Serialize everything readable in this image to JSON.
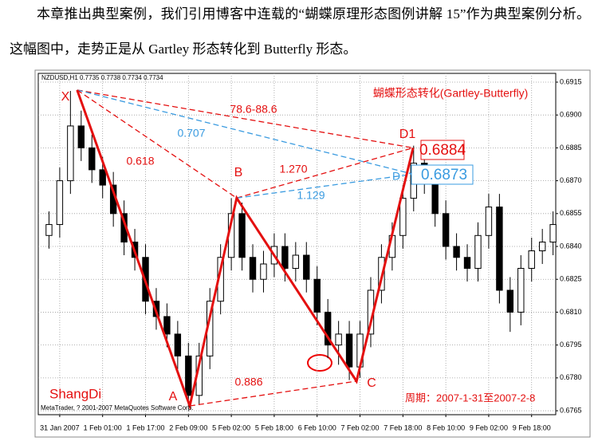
{
  "text": {
    "paragraph": "本章推出典型案例，我们引用博客中连载的“蝴蝶原理形态图例讲解 15”作为典型案例分析。这幅图中，走势正是从 Gartley 形态转化到 Butterfly 形态。"
  },
  "chart_data": {
    "type": "candlestick",
    "title": "蝴蝶形态转化(Gartley-Butterfly)",
    "symbol_label": "NZDUSD,H1 0.7735 0.7738 0.7734 0.7734",
    "x": [
      -4,
      0,
      4,
      8,
      12,
      16,
      20,
      24,
      28,
      32,
      36,
      40,
      44,
      48,
      52,
      56,
      60,
      64,
      68,
      72,
      76,
      80,
      84,
      88,
      92,
      96,
      100,
      104,
      108,
      112,
      116,
      120,
      124,
      128,
      132,
      136,
      140,
      144,
      148,
      152,
      156,
      160,
      164,
      168,
      172,
      176,
      180,
      184
    ],
    "open": [
      0.6845,
      0.685,
      0.687,
      0.6895,
      0.6885,
      0.6875,
      0.6868,
      0.6855,
      0.6842,
      0.6835,
      0.6815,
      0.6808,
      0.68,
      0.679,
      0.6772,
      0.679,
      0.6815,
      0.6835,
      0.6855,
      0.6835,
      0.6825,
      0.6832,
      0.684,
      0.683,
      0.6836,
      0.6825,
      0.681,
      0.6795,
      0.68,
      0.6785,
      0.68,
      0.682,
      0.6835,
      0.6845,
      0.6862,
      0.6878,
      0.687,
      0.6855,
      0.684,
      0.6835,
      0.683,
      0.6845,
      0.6858,
      0.682,
      0.681,
      0.683,
      0.6838,
      0.6842
    ],
    "high": [
      0.6856,
      0.6876,
      0.6911,
      0.6902,
      0.6891,
      0.6881,
      0.6874,
      0.6861,
      0.6848,
      0.6841,
      0.6821,
      0.6814,
      0.6806,
      0.6796,
      0.6796,
      0.6821,
      0.6841,
      0.6862,
      0.686,
      0.6841,
      0.6838,
      0.6846,
      0.6846,
      0.6842,
      0.6842,
      0.6831,
      0.6816,
      0.6806,
      0.6806,
      0.6806,
      0.6826,
      0.6841,
      0.6851,
      0.6868,
      0.6886,
      0.6884,
      0.6876,
      0.6861,
      0.6846,
      0.6841,
      0.6851,
      0.6864,
      0.6864,
      0.6826,
      0.6836,
      0.6844,
      0.6848,
      0.6856
    ],
    "low": [
      0.6839,
      0.6844,
      0.6864,
      0.6879,
      0.6869,
      0.6862,
      0.6849,
      0.6836,
      0.6829,
      0.6809,
      0.6802,
      0.6794,
      0.6784,
      0.6767,
      0.6768,
      0.6784,
      0.6809,
      0.6829,
      0.6829,
      0.6819,
      0.6819,
      0.6826,
      0.6824,
      0.6824,
      0.6819,
      0.6804,
      0.6789,
      0.6786,
      0.6779,
      0.678,
      0.6794,
      0.6814,
      0.6829,
      0.6839,
      0.6856,
      0.6864,
      0.6849,
      0.6834,
      0.6829,
      0.6824,
      0.6824,
      0.6839,
      0.6814,
      0.6801,
      0.6804,
      0.6824,
      0.6832,
      0.6836
    ],
    "close": [
      0.685,
      0.687,
      0.6895,
      0.6885,
      0.6875,
      0.6868,
      0.6855,
      0.6842,
      0.6835,
      0.6815,
      0.6808,
      0.68,
      0.679,
      0.6772,
      0.679,
      0.6815,
      0.6835,
      0.6855,
      0.6835,
      0.6825,
      0.6832,
      0.684,
      0.683,
      0.6836,
      0.6825,
      0.681,
      0.6795,
      0.68,
      0.6785,
      0.68,
      0.682,
      0.6835,
      0.6845,
      0.6862,
      0.6878,
      0.687,
      0.6855,
      0.684,
      0.6835,
      0.683,
      0.6845,
      0.6858,
      0.682,
      0.681,
      0.683,
      0.6838,
      0.6842,
      0.685
    ],
    "xlim": [
      -8,
      185
    ],
    "xticks": [
      {
        "value": 0,
        "label": "31 Jan 2007"
      },
      {
        "value": 16,
        "label": "1 Feb 01:00"
      },
      {
        "value": 32,
        "label": "1 Feb 17:00"
      },
      {
        "value": 48,
        "label": "2 Feb 09:00"
      },
      {
        "value": 64,
        "label": "5 Feb 02:00"
      },
      {
        "value": 80,
        "label": "5 Feb 18:00"
      },
      {
        "value": 96,
        "label": "6 Feb 10:00"
      },
      {
        "value": 112,
        "label": "7 Feb 02:00"
      },
      {
        "value": 128,
        "label": "7 Feb 18:00"
      },
      {
        "value": 144,
        "label": "8 Feb 10:00"
      },
      {
        "value": 160,
        "label": "9 Feb 02:00"
      },
      {
        "value": 176,
        "label": "9 Feb 18:00"
      }
    ],
    "ylim": [
      0.67632,
      0.6919
    ],
    "yticks": [
      0.6915,
      {
        "value": 0.69,
        "label": "0.6900"
      },
      0.6885,
      {
        "value": 0.687,
        "label": "0.6870"
      },
      0.6855,
      {
        "value": 0.684,
        "label": "0.6840"
      },
      0.6825,
      {
        "value": 0.681,
        "label": "0.6810"
      },
      0.6795,
      {
        "value": 0.678,
        "label": "0.6780"
      },
      0.6765
    ],
    "grid": true,
    "pattern": {
      "labels": [
        "X",
        "A",
        "B",
        "C",
        "D1"
      ],
      "x": [
        6.5,
        48.5,
        66,
        110.7,
        131.8
      ],
      "y": [
        0.69114,
        0.67672,
        0.68621,
        0.67785,
        0.6885
      ]
    },
    "d_point": {
      "label": "D",
      "x": 131.8,
      "y": 0.6873
    },
    "ratio_labels": [
      "78.6-88.6",
      "0.707",
      "0.618",
      "1.270",
      "1.129",
      "0.886"
    ],
    "price_labels": [
      0.6884,
      0.6873
    ],
    "watermark": "ShangDi",
    "period": "周期：2007-1-31至2007-2-8",
    "copyright": "MetaTrader, ? 2001-2007 MetaQuotes Software Corp."
  }
}
